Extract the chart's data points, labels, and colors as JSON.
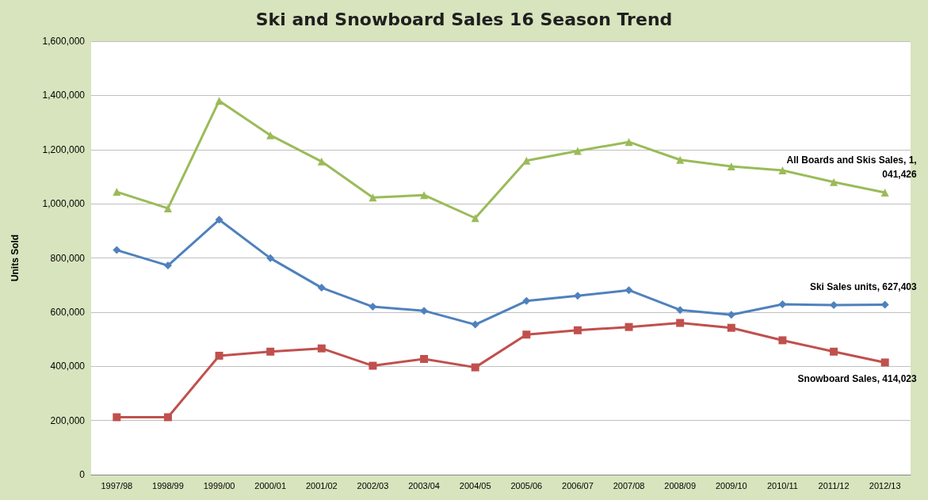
{
  "chart_data": {
    "type": "line",
    "title": "Ski and Snowboard Sales 16 Season Trend",
    "ylabel": "Units Sold",
    "categories": [
      "1997/98",
      "1998/99",
      "1999/00",
      "2000/01",
      "2001/02",
      "2002/03",
      "2003/04",
      "2004/05",
      "2005/06",
      "2006/07",
      "2007/08",
      "2008/09",
      "2009/10",
      "2010/11",
      "2011/12",
      "2012/13"
    ],
    "series": [
      {
        "color": "#9bbb59",
        "marker": "triangle",
        "values": [
          1044000,
          983000,
          1380000,
          1253000,
          1156000,
          1023000,
          1032000,
          947000,
          1159000,
          1195000,
          1228000,
          1162000,
          1138000,
          1123000,
          1080000,
          1041426
        ]
      },
      {
        "color": "#4f81bd",
        "marker": "diamond",
        "values": [
          829000,
          772000,
          941000,
          799000,
          690000,
          620000,
          605000,
          554000,
          641000,
          660000,
          681000,
          608000,
          590000,
          629000,
          626000,
          627403
        ]
      },
      {
        "color": "#c0504d",
        "marker": "square",
        "values": [
          212000,
          212000,
          439000,
          454000,
          466000,
          402000,
          427000,
          396000,
          517000,
          533000,
          545000,
          560000,
          542000,
          496000,
          454000,
          414023
        ]
      }
    ],
    "ylim": [
      0,
      1600000
    ],
    "yticks": [
      0,
      {
        "value": 200000,
        "label": "200,000"
      },
      {
        "value": 400000,
        "label": "400,000"
      },
      {
        "value": 600000,
        "label": "600,000"
      },
      {
        "value": 800000,
        "label": "800,000"
      },
      {
        "value": 1000000,
        "label": "1,000,000"
      },
      {
        "value": 1200000,
        "label": "1,200,000"
      },
      {
        "value": 1400000,
        "label": "1,400,000"
      },
      {
        "value": 1600000,
        "label": "1,600,000"
      }
    ],
    "grid": "y",
    "line_style": "solid",
    "annotations": [
      {
        "text": "All Boards and Skis Sales, 1,041,426",
        "x": "2012/13",
        "y": 1041426
      },
      {
        "text": "Ski Sales units, 627,403",
        "x": "2012/13",
        "y": 627403
      },
      {
        "text": "Snowboard Sales, 414,023",
        "x": "2012/13",
        "y": 414023
      }
    ]
  }
}
